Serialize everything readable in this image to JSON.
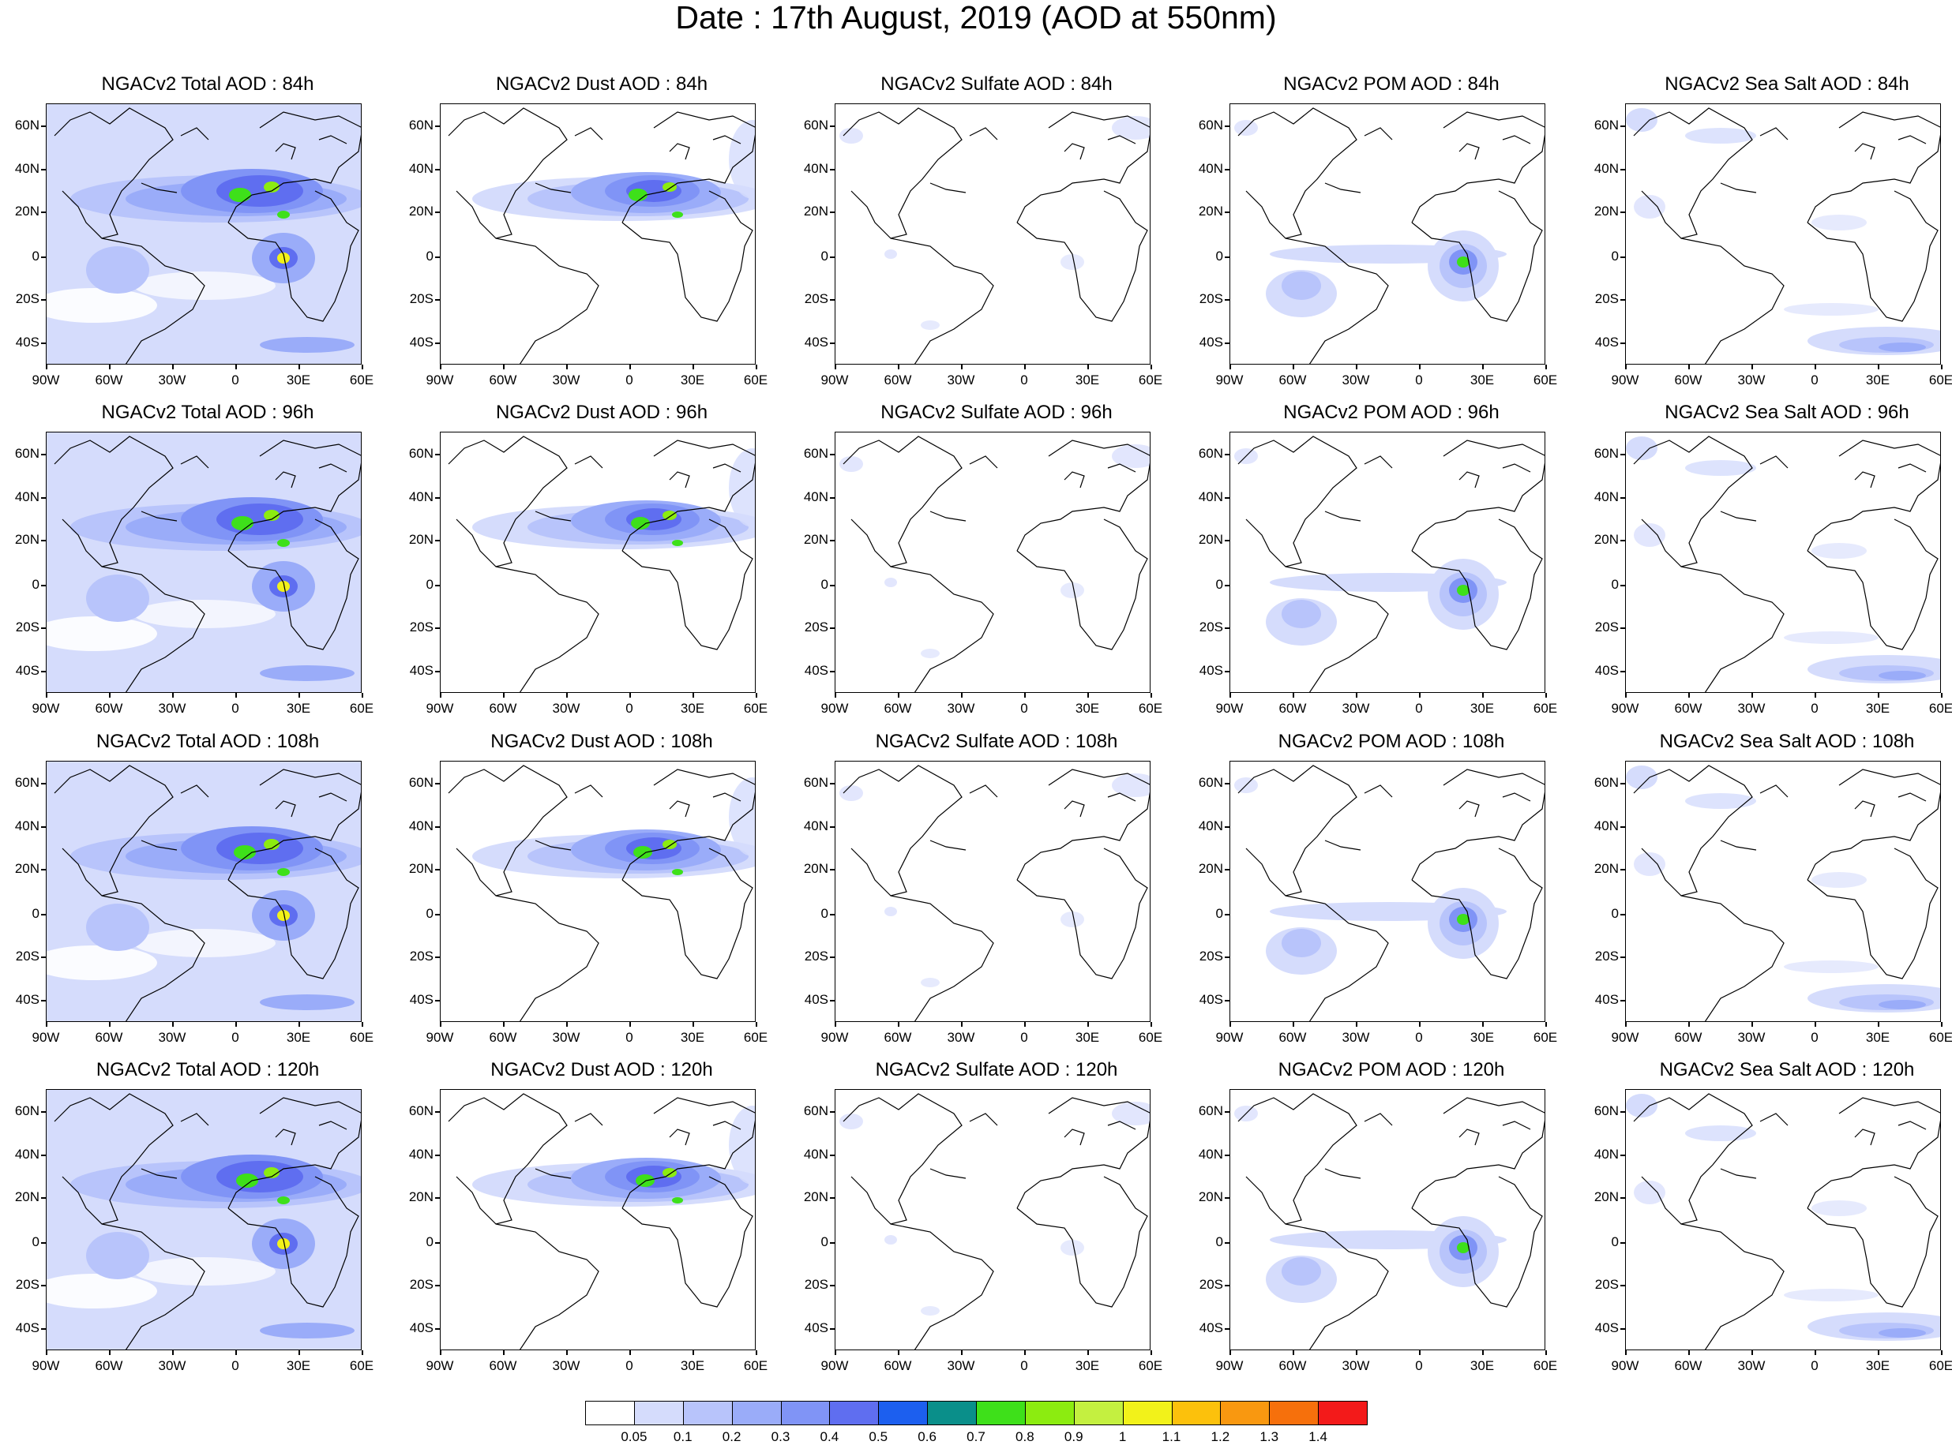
{
  "title": "Date : 17th August, 2019 (AOD at 550nm)",
  "lat_labels": [
    "60N",
    "40N",
    "20N",
    "0",
    "20S",
    "40S"
  ],
  "lon_labels": [
    "90W",
    "60W",
    "30W",
    "0",
    "30E",
    "60E"
  ],
  "map_extent": {
    "lon": [
      -90,
      60
    ],
    "lat": [
      -50,
      70
    ]
  },
  "rows": [
    {
      "hour": "84h",
      "titles": [
        "NGACv2 Total AOD : 84h",
        "NGACv2 Dust AOD : 84h",
        "NGACv2 Sulfate AOD : 84h",
        "NGACv2 POM AOD : 84h",
        "NGACv2 Sea Salt AOD : 84h"
      ]
    },
    {
      "hour": "96h",
      "titles": [
        "NGACv2 Total AOD : 96h",
        "NGACv2 Dust AOD : 96h",
        "NGACv2 Sulfate AOD : 96h",
        "NGACv2 POM AOD : 96h",
        "NGACv2 Sea Salt AOD : 96h"
      ]
    },
    {
      "hour": "108h",
      "titles": [
        "NGACv2 Total AOD : 108h",
        "NGACv2 Dust AOD : 108h",
        "NGACv2 Sulfate AOD : 108h",
        "NGACv2 POM AOD : 108h",
        "NGACv2 Sea Salt AOD : 108h"
      ]
    },
    {
      "hour": "120h",
      "titles": [
        "NGACv2 Total AOD : 120h",
        "NGACv2 Dust AOD : 120h",
        "NGACv2 Sulfate AOD : 120h",
        "NGACv2 POM AOD : 120h",
        "NGACv2 Sea Salt  AOD : 120h"
      ]
    }
  ],
  "colorbar": {
    "colors": [
      "#ffffff",
      "#d5dcfc",
      "#b8c4fb",
      "#9aacf9",
      "#8094f6",
      "#5f6ef0",
      "#1c5fef",
      "#0a8f8a",
      "#3ee01a",
      "#8cec10",
      "#c4f040",
      "#f2f21a",
      "#fcc10c",
      "#f99810",
      "#f6700c",
      "#f31a1a"
    ],
    "labels": [
      "0.05",
      "0.1",
      "0.2",
      "0.3",
      "0.4",
      "0.5",
      "0.6",
      "0.7",
      "0.8",
      "0.9",
      "1",
      "1.1",
      "1.2",
      "1.3",
      "1.4"
    ]
  }
}
